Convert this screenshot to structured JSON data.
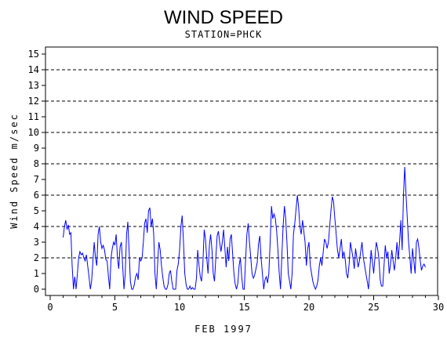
{
  "chart_data": {
    "type": "line",
    "title": "WIND SPEED",
    "subtitle": "STATION=PHCK",
    "xlabel": "FEB 1997",
    "ylabel": "Wind Speed m/sec",
    "xlim": [
      0,
      30
    ],
    "ylim": [
      0,
      15
    ],
    "xticks": [
      0,
      5,
      10,
      15,
      20,
      25,
      30
    ],
    "yticks": [
      0,
      1,
      2,
      3,
      4,
      5,
      6,
      7,
      8,
      9,
      10,
      11,
      12,
      13,
      14,
      15
    ],
    "reference_lines": [
      2,
      4,
      6,
      8,
      10,
      12,
      14
    ],
    "grid": "dashed horizontal at even values",
    "line_color": "#0000ff",
    "series": [
      {
        "x": [
          1.0,
          1.1,
          1.2,
          1.3,
          1.4,
          1.5,
          1.6,
          1.7,
          1.8,
          1.9,
          2.0,
          2.1,
          2.2,
          2.3,
          2.4,
          2.5,
          2.6,
          2.7,
          2.8,
          2.9,
          3.0,
          3.1,
          3.2,
          3.3,
          3.4,
          3.5,
          3.6,
          3.7,
          3.8,
          3.9,
          4.0,
          4.1,
          4.2,
          4.3,
          4.4,
          4.5,
          4.6,
          4.7,
          4.8,
          4.9,
          5.0,
          5.1,
          5.2,
          5.3,
          5.4,
          5.5,
          5.6,
          5.7,
          5.8,
          5.9,
          6.0,
          6.1,
          6.2,
          6.3,
          6.4,
          6.5,
          6.6,
          6.7,
          6.8,
          6.9,
          7.0,
          7.1,
          7.2,
          7.3,
          7.4,
          7.5,
          7.6,
          7.7,
          7.8,
          7.9,
          8.0,
          8.1,
          8.2,
          8.3,
          8.4,
          8.5,
          8.6,
          8.7,
          8.8,
          8.9,
          9.0,
          9.1,
          9.2,
          9.3,
          9.4,
          9.5,
          9.6,
          9.7,
          9.8,
          9.9,
          10.0,
          10.1,
          10.2,
          10.3,
          10.4,
          10.5,
          10.6,
          10.7,
          10.8,
          10.9,
          11.0,
          11.1,
          11.2,
          11.3,
          11.4,
          11.5,
          11.6,
          11.7,
          11.8,
          11.9,
          12.0,
          12.1,
          12.2,
          12.3,
          12.4,
          12.5,
          12.6,
          12.7,
          12.8,
          12.9,
          13.0,
          13.1,
          13.2,
          13.3,
          13.4,
          13.5,
          13.6,
          13.7,
          13.8,
          13.9,
          14.0,
          14.1,
          14.2,
          14.3,
          14.4,
          14.5,
          14.6,
          14.7,
          14.8,
          14.9,
          15.0,
          15.1,
          15.2,
          15.3,
          15.4,
          15.5,
          15.6,
          15.7,
          15.8,
          15.9,
          16.0,
          16.1,
          16.2,
          16.3,
          16.4,
          16.5,
          16.6,
          16.7,
          16.8,
          16.9,
          17.0,
          17.1,
          17.2,
          17.3,
          17.4,
          17.5,
          17.6,
          17.7,
          17.8,
          17.9,
          18.0,
          18.1,
          18.2,
          18.3,
          18.4,
          18.5,
          18.6,
          18.7,
          18.8,
          18.9,
          19.0,
          19.1,
          19.2,
          19.3,
          19.4,
          19.5,
          19.6,
          19.7,
          19.8,
          19.9,
          20.0,
          20.1,
          20.2,
          20.3,
          20.4,
          20.5,
          20.6,
          20.7,
          20.8,
          20.9,
          21.0,
          21.1,
          21.2,
          21.3,
          21.4,
          21.5,
          21.6,
          21.7,
          21.8,
          21.9,
          22.0,
          22.1,
          22.2,
          22.3,
          22.4,
          22.5,
          22.6,
          22.7,
          22.8,
          22.9,
          23.0,
          23.1,
          23.2,
          23.3,
          23.4,
          23.5,
          23.6,
          23.7,
          23.8,
          23.9,
          24.0,
          24.1,
          24.2,
          24.3,
          24.4,
          24.5,
          24.6,
          24.7,
          24.8,
          24.9,
          25.0,
          25.1,
          25.2,
          25.3,
          25.4,
          25.5,
          25.6,
          25.7,
          25.8,
          25.9,
          26.0,
          26.1,
          26.2,
          26.3,
          26.4,
          26.5,
          26.6,
          26.7,
          26.8,
          26.9,
          27.0,
          27.1,
          27.2,
          27.3,
          27.4,
          27.5,
          27.6,
          27.7,
          27.8,
          27.9,
          28.0,
          28.1,
          28.2,
          28.3,
          28.4,
          28.5,
          28.6,
          28.7,
          28.8,
          28.9,
          29.0
        ],
        "y": [
          3.3,
          4.0,
          4.4,
          3.8,
          4.1,
          3.5,
          3.6,
          1.5,
          0.0,
          0.8,
          0.0,
          1.0,
          2.0,
          2.4,
          2.2,
          2.3,
          2.0,
          1.8,
          2.2,
          1.5,
          0.8,
          0.0,
          0.5,
          1.8,
          3.0,
          2.0,
          1.5,
          3.5,
          4.0,
          3.0,
          2.6,
          2.8,
          2.5,
          1.9,
          1.8,
          0.8,
          0.0,
          2.0,
          2.6,
          3.0,
          2.8,
          3.5,
          2.0,
          1.3,
          2.7,
          3.0,
          1.5,
          0.0,
          1.0,
          3.5,
          4.3,
          2.5,
          0.5,
          0.0,
          0.0,
          0.3,
          0.8,
          1.0,
          0.6,
          2.0,
          1.8,
          2.0,
          3.0,
          4.2,
          4.5,
          3.6,
          5.0,
          5.2,
          4.0,
          4.5,
          3.5,
          1.0,
          0.0,
          1.5,
          3.0,
          2.5,
          1.5,
          0.8,
          0.2,
          0.0,
          0.0,
          0.3,
          1.0,
          1.2,
          0.5,
          0.0,
          0.0,
          0.0,
          1.2,
          1.6,
          2.5,
          4.0,
          4.7,
          3.0,
          1.0,
          0.3,
          0.0,
          0.0,
          0.2,
          0.0,
          0.1,
          0.0,
          0.0,
          0.7,
          2.5,
          1.5,
          0.8,
          0.5,
          1.6,
          3.8,
          3.2,
          2.0,
          1.0,
          2.8,
          3.5,
          2.5,
          1.0,
          0.5,
          2.0,
          3.4,
          3.7,
          3.0,
          2.4,
          3.0,
          3.8,
          2.6,
          1.4,
          2.7,
          1.8,
          3.2,
          3.5,
          2.3,
          1.0,
          0.3,
          0.0,
          0.4,
          1.5,
          2.0,
          0.8,
          0.0,
          0.0,
          1.8,
          3.5,
          4.2,
          3.0,
          2.0,
          1.0,
          0.7,
          0.9,
          1.3,
          1.7,
          2.9,
          3.4,
          2.0,
          1.0,
          0.0,
          0.6,
          0.8,
          0.4,
          1.0,
          3.0,
          5.3,
          4.5,
          4.8,
          4.5,
          3.7,
          2.5,
          1.0,
          0.0,
          2.0,
          4.0,
          5.3,
          4.5,
          3.0,
          1.0,
          0.5,
          0.0,
          1.0,
          3.5,
          4.2,
          5.1,
          6.0,
          5.2,
          4.0,
          3.5,
          4.4,
          3.7,
          3.0,
          1.5,
          2.6,
          3.0,
          1.5,
          1.0,
          0.5,
          0.2,
          0.0,
          0.2,
          0.6,
          1.5,
          2.0,
          1.5,
          2.4,
          3.2,
          3.0,
          2.6,
          3.0,
          4.0,
          5.0,
          5.9,
          5.6,
          4.5,
          3.5,
          2.5,
          2.0,
          2.6,
          3.2,
          2.0,
          2.4,
          1.9,
          1.0,
          0.7,
          1.6,
          3.0,
          2.5,
          2.0,
          1.3,
          2.6,
          2.0,
          1.4,
          1.8,
          2.4,
          3.0,
          2.0,
          1.5,
          1.0,
          0.5,
          0.0,
          1.2,
          2.5,
          1.8,
          1.0,
          2.0,
          3.0,
          2.6,
          2.0,
          0.6,
          0.2,
          0.2,
          1.5,
          2.8,
          2.0,
          2.4,
          1.0,
          1.6,
          2.5,
          1.8,
          1.2,
          2.0,
          3.0,
          1.9,
          3.0,
          4.4,
          2.5,
          6.0,
          7.8,
          6.0,
          4.5,
          3.0,
          2.0,
          1.0,
          2.6,
          1.8,
          1.0,
          3.0,
          3.2,
          2.6,
          1.8,
          1.2,
          1.5,
          1.6,
          1.4
        ]
      }
    ]
  }
}
